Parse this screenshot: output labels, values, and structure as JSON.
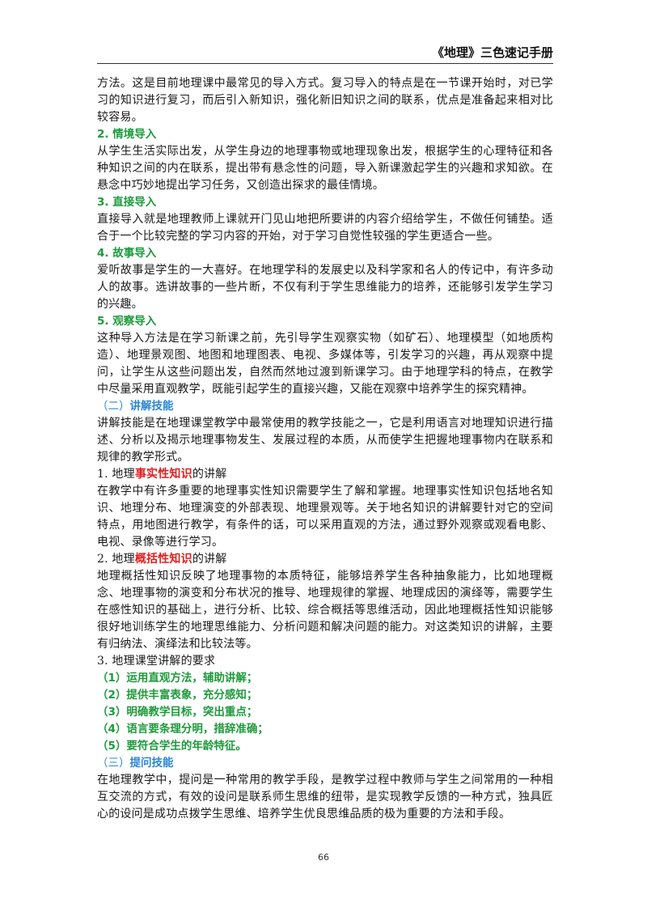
{
  "header": {
    "title": "《地理》三色速记手册"
  },
  "blocks": [
    {
      "type": "p",
      "text": "方法。这是目前地理课中最常见的导入方式。复习导入的特点是在一节课开始时，对已学习的知识进行复习，而后引入新知识，强化新旧知识之间的联系，优点是准备起来相对比较容易。"
    },
    {
      "type": "h-green",
      "text": "2. 情境导入"
    },
    {
      "type": "p",
      "text": "从学生生活实际出发，从学生身边的地理事物或地理现象出发，根据学生的心理特征和各种知识之间的内在联系，提出带有悬念性的问题，导入新课激起学生的兴趣和求知欲。在悬念中巧妙地提出学习任务，又创造出探求的最佳情境。"
    },
    {
      "type": "h-green",
      "text": "3. 直接导入"
    },
    {
      "type": "p",
      "text": "直接导入就是地理教师上课就开门见山地把所要讲的内容介绍给学生，不做任何铺垫。适合于一个比较完整的学习内容的开始，对于学习自觉性较强的学生更适合一些。"
    },
    {
      "type": "h-green",
      "text": "4. 故事导入"
    },
    {
      "type": "p",
      "text": "爱听故事是学生的一大喜好。在地理学科的发展史以及科学家和名人的传记中，有许多动人的故事。选讲故事的一些片断，不仅有利于学生思维能力的培养，还能够引发学生学习的兴趣。"
    },
    {
      "type": "h-green",
      "text": "5. 观察导入"
    },
    {
      "type": "p",
      "text": "这种导入方法是在学习新课之前，先引导学生观察实物（如矿石）、地理模型（如地质构造）、地理景观图、地图和地理图表、电视、多媒体等，引发学习的兴趣，再从观察中提问，让学生从这些问题出发，自然而然地过渡到新课学习。由于地理学科的特点，在教学中尽量采用直观教学，既能引起学生的直接兴趣，又能在观察中培养学生的探究精神。"
    },
    {
      "type": "h-blue",
      "prefix": "（二）",
      "text": "讲解技能"
    },
    {
      "type": "p",
      "text": "讲解技能是在地理课堂教学中最常使用的教学技能之一，它是利用语言对地理知识进行描述、分析以及揭示地理事物发生、发展过程的本质，从而使学生把握地理事物内在联系和规律的教学形式。"
    },
    {
      "type": "p-red",
      "pre": "1. 地理",
      "red": "事实性知识",
      "post": "的讲解"
    },
    {
      "type": "p",
      "text": "在教学中有许多重要的地理事实性知识需要学生了解和掌握。地理事实性知识包括地名知识、地理分布、地理演变的外部表现、地理景观等。关于地名知识的讲解要针对它的空间特点，用地图进行教学，有条件的话，可以采用直观的方法，通过野外观察或观看电影、电视、录像等进行学习。"
    },
    {
      "type": "p-red",
      "pre": "2. 地理",
      "red": "概括性知识",
      "post": "的讲解"
    },
    {
      "type": "p",
      "text": "地理概括性知识反映了地理事物的本质特征，能够培养学生各种抽象能力，比如地理概念、地理事物的演变和分布状况的推导、地理规律的掌握、地理成因的演绎等，需要学生在感性知识的基础上，进行分析、比较、综合概括等思维活动，因此地理概括性知识能够很好地训练学生的地理思维能力、分析问题和解决问题的能力。对这类知识的讲解，主要有归纳法、演绎法和比较法等。"
    },
    {
      "type": "p",
      "text": "3. 地理课堂讲解的要求"
    },
    {
      "type": "req",
      "text": "（1）运用直观方法，辅助讲解；"
    },
    {
      "type": "req",
      "text": "（2）提供丰富表象，充分感知；"
    },
    {
      "type": "req",
      "text": "（3）明确教学目标，突出重点；"
    },
    {
      "type": "req",
      "text": "（4）语言要条理分明，措辞准确；"
    },
    {
      "type": "req",
      "text": "（5）要符合学生的年龄特征。"
    },
    {
      "type": "h-blue",
      "prefix": "（三）",
      "text": "提问技能"
    },
    {
      "type": "p",
      "text": "在地理教学中，提问是一种常用的教学手段，是教学过程中教师与学生之间常用的一种相互交流的方式，有效的设问是联系师生思维的纽带，是实现教学反馈的一种方式，独具匠心的设问是成功点拨学生思维、培养学生优良思维品质的极为重要的方法和手段。"
    }
  ],
  "footer": {
    "page_number": "66"
  }
}
